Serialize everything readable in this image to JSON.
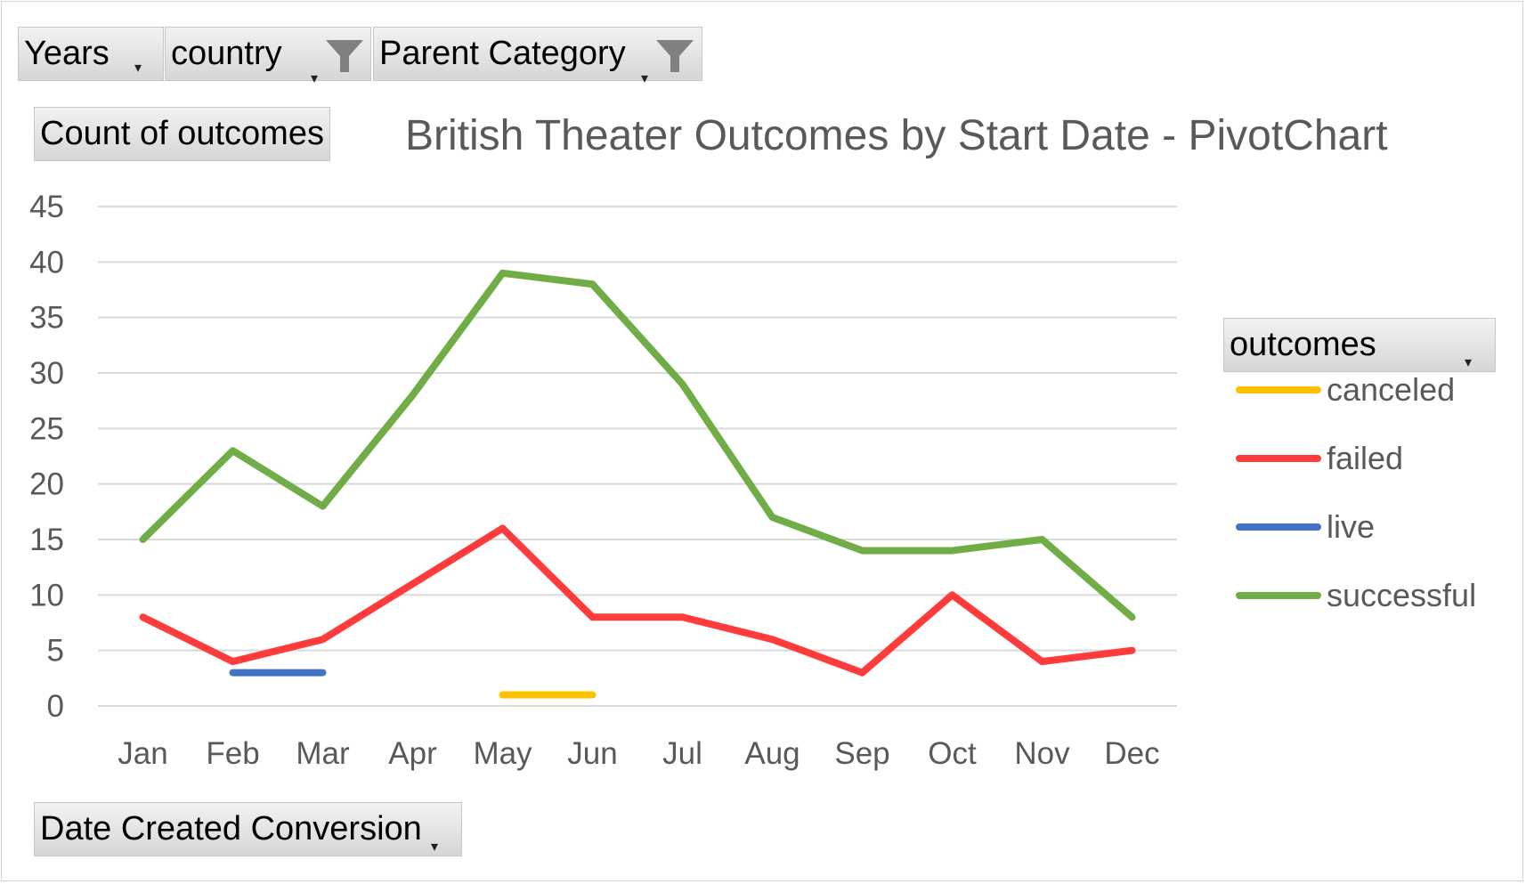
{
  "filters": {
    "years": "Years",
    "country": "country",
    "parent_category": "Parent Category"
  },
  "value_field": "Count of outcomes",
  "axis_field": "Date Created Conversion",
  "legend_field": "outcomes",
  "colors": {
    "canceled": "#ffc000",
    "failed": "#ff3b3b",
    "live": "#4472c4",
    "successful": "#70ad47",
    "gridline": "#d9d9d9",
    "text": "#595959"
  },
  "chart_data": {
    "type": "line",
    "title": "British Theater Outcomes by Start Date - PivotChart",
    "xlabel": "",
    "ylabel": "",
    "categories": [
      "Jan",
      "Feb",
      "Mar",
      "Apr",
      "May",
      "Jun",
      "Jul",
      "Aug",
      "Sep",
      "Oct",
      "Nov",
      "Dec"
    ],
    "ylim": [
      0,
      45
    ],
    "yticks": [
      0,
      5,
      10,
      15,
      20,
      25,
      30,
      35,
      40,
      45
    ],
    "grid": true,
    "legend_position": "right",
    "series": [
      {
        "name": "canceled",
        "values": [
          null,
          null,
          null,
          null,
          1,
          1,
          null,
          null,
          null,
          null,
          null,
          null
        ]
      },
      {
        "name": "failed",
        "values": [
          8,
          4,
          6,
          11,
          16,
          8,
          8,
          6,
          3,
          10,
          4,
          5
        ]
      },
      {
        "name": "live",
        "values": [
          null,
          3,
          3,
          null,
          null,
          null,
          null,
          null,
          null,
          null,
          null,
          null
        ]
      },
      {
        "name": "successful",
        "values": [
          15,
          23,
          18,
          28,
          39,
          38,
          29,
          17,
          14,
          14,
          15,
          8
        ]
      }
    ]
  }
}
